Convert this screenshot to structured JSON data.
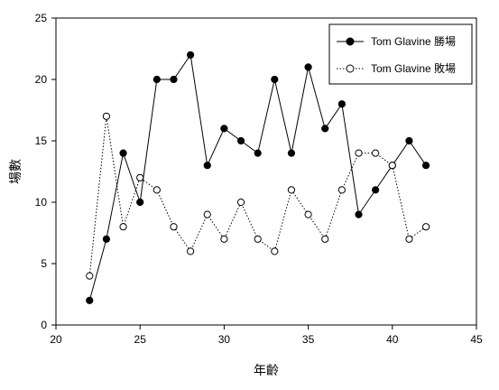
{
  "chart_data": {
    "type": "line",
    "xlabel": "年齡",
    "ylabel": "場數",
    "xlim": [
      20,
      45
    ],
    "ylim": [
      0,
      25
    ],
    "x_ticks": [
      20,
      25,
      30,
      35,
      40,
      45
    ],
    "y_ticks": [
      0,
      5,
      10,
      15,
      20,
      25
    ],
    "grid": false,
    "legend_position": "top-right",
    "series": [
      {
        "name": "Tom Glavine 勝場",
        "style": "solid",
        "marker": "filled-circle",
        "color": "#000000",
        "x": [
          22,
          23,
          24,
          25,
          26,
          27,
          28,
          29,
          30,
          31,
          32,
          33,
          34,
          35,
          36,
          37,
          38,
          39,
          40,
          41,
          42
        ],
        "y": [
          2,
          7,
          14,
          10,
          20,
          20,
          22,
          13,
          16,
          15,
          14,
          20,
          14,
          21,
          16,
          18,
          9,
          11,
          13,
          15,
          13
        ]
      },
      {
        "name": "Tom Glavine 敗場",
        "style": "dotted",
        "marker": "open-circle",
        "color": "#000000",
        "x": [
          22,
          23,
          24,
          25,
          26,
          27,
          28,
          29,
          30,
          31,
          32,
          33,
          34,
          35,
          36,
          37,
          38,
          39,
          40,
          41,
          42
        ],
        "y": [
          4,
          17,
          8,
          12,
          11,
          8,
          6,
          9,
          7,
          10,
          7,
          6,
          11,
          9,
          7,
          11,
          14,
          14,
          13,
          7,
          8
        ]
      }
    ]
  }
}
